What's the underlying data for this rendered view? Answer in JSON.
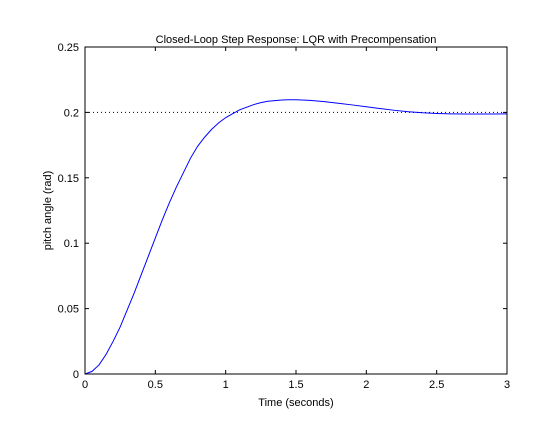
{
  "chart_data": {
    "type": "line",
    "title": "Closed-Loop Step Response: LQR with Precompensation",
    "xlabel": "Time (seconds)",
    "ylabel": "pitch angle (rad)",
    "xlim": [
      0,
      3
    ],
    "ylim": [
      0,
      0.25
    ],
    "grid": false,
    "x_ticks": [
      0,
      0.5,
      1,
      1.5,
      2,
      2.5,
      3
    ],
    "x_tick_labels": [
      "0",
      "0.5",
      "1",
      "1.5",
      "2",
      "2.5",
      "3"
    ],
    "y_ticks": [
      0,
      0.05,
      0.1,
      0.15,
      0.2,
      0.25
    ],
    "y_tick_labels": [
      "0",
      "0.05",
      "0.1",
      "0.15",
      "0.2",
      "0.25"
    ],
    "series": [
      {
        "color": "#0000ff",
        "style": "solid",
        "x": [
          0,
          0.05,
          0.1,
          0.15,
          0.2,
          0.25,
          0.3,
          0.35,
          0.4,
          0.45,
          0.5,
          0.55,
          0.6,
          0.65,
          0.7,
          0.75,
          0.8,
          0.85,
          0.9,
          0.95,
          1.0,
          1.05,
          1.1,
          1.15,
          1.2,
          1.25,
          1.3,
          1.35,
          1.4,
          1.45,
          1.5,
          1.6,
          1.7,
          1.8,
          1.9,
          2.0,
          2.1,
          2.2,
          2.3,
          2.4,
          2.5,
          2.6,
          2.7,
          2.8,
          2.9,
          3.0
        ],
        "y": [
          0,
          0.002,
          0.007,
          0.015,
          0.025,
          0.036,
          0.049,
          0.062,
          0.076,
          0.09,
          0.104,
          0.118,
          0.131,
          0.143,
          0.154,
          0.165,
          0.174,
          0.181,
          0.187,
          0.192,
          0.196,
          0.199,
          0.202,
          0.204,
          0.206,
          0.2075,
          0.2085,
          0.209,
          0.2095,
          0.2097,
          0.2097,
          0.2092,
          0.2082,
          0.207,
          0.2057,
          0.2043,
          0.2029,
          0.2016,
          0.2005,
          0.1997,
          0.1992,
          0.1989,
          0.1988,
          0.1988,
          0.1988,
          0.1989
        ]
      },
      {
        "color": "#000000",
        "style": "dotted",
        "x": [
          0,
          3
        ],
        "y": [
          0.2,
          0.2
        ]
      }
    ]
  }
}
